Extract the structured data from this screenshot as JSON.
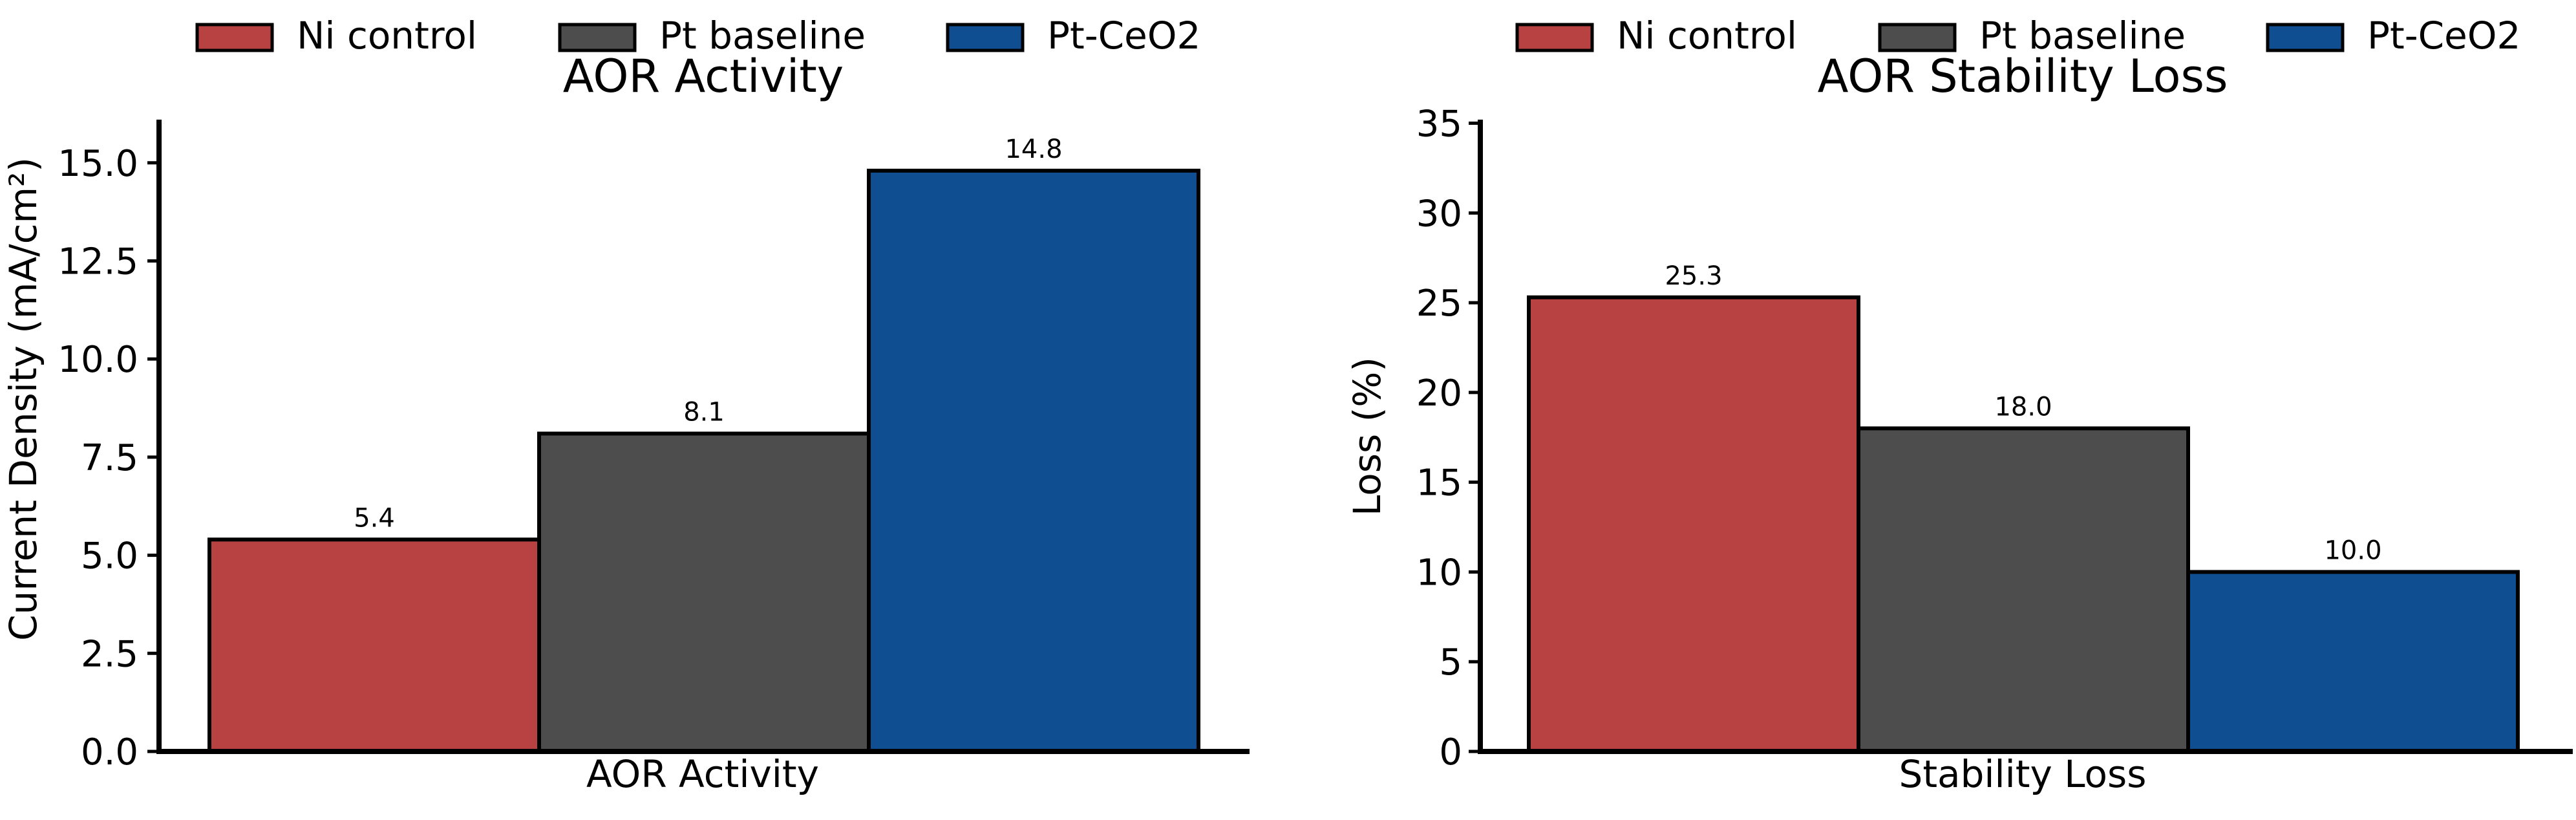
{
  "chart_data": [
    {
      "type": "bar",
      "title": "AOR Activity",
      "xlabel": "",
      "ylabel": "Current Density (mA/cm²)",
      "categories": [
        "AOR Activity"
      ],
      "series": [
        {
          "name": "Ni control",
          "values": [
            5.4
          ],
          "value_label": "5.4",
          "color": "#b84242"
        },
        {
          "name": "Pt baseline",
          "values": [
            8.1
          ],
          "value_label": "8.1",
          "color": "#4d4d4d"
        },
        {
          "name": "Pt-CeO2",
          "values": [
            14.8
          ],
          "value_label": "14.8",
          "color": "#104e92"
        }
      ],
      "ylim": [
        0,
        16.1
      ],
      "yticks": [
        0.0,
        2.5,
        5.0,
        7.5,
        10.0,
        12.5,
        15.0
      ],
      "ytick_labels": [
        "0.0",
        "2.5",
        "5.0",
        "7.5",
        "10.0",
        "12.5",
        "15.0"
      ],
      "legend": "top-center",
      "grid": false
    },
    {
      "type": "bar",
      "title": "AOR Stability Loss",
      "xlabel": "",
      "ylabel": "Loss (%)",
      "categories": [
        "Stability Loss"
      ],
      "series": [
        {
          "name": "Ni control",
          "values": [
            25.3
          ],
          "value_label": "25.3",
          "color": "#b84242"
        },
        {
          "name": "Pt baseline",
          "values": [
            18.0
          ],
          "value_label": "18.0",
          "color": "#4d4d4d"
        },
        {
          "name": "Pt-CeO2",
          "values": [
            10.0
          ],
          "value_label": "10.0",
          "color": "#104e92"
        }
      ],
      "ylim": [
        0,
        35.2
      ],
      "yticks": [
        0,
        5,
        10,
        15,
        20,
        25,
        30,
        35
      ],
      "ytick_labels": [
        "0",
        "5",
        "10",
        "15",
        "20",
        "25",
        "30",
        "35"
      ],
      "legend": "top-center",
      "grid": false
    }
  ]
}
